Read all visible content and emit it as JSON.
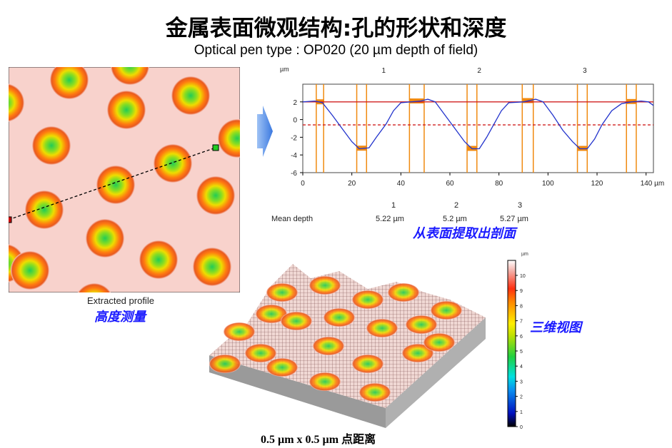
{
  "title": "金属表面微观结构:孔的形状和深度",
  "subtitle": "Optical pen type : OP020 (20 µm depth of field)",
  "left_panel": {
    "caption": "Extracted profile",
    "label": "高度测量"
  },
  "profile_label": "从表面提取出剖面",
  "view3d_label": "三维视图",
  "footer": "0.5 µm x 0.5 µm 点距离",
  "colorbar": {
    "unit": "µm",
    "ticks": [
      "0",
      "1",
      "2",
      "3",
      "4",
      "5",
      "6",
      "7",
      "8",
      "9",
      "10"
    ]
  },
  "mean_depth": {
    "label": "Mean depth",
    "headers": [
      "1",
      "2",
      "3"
    ],
    "values": [
      "5.22 µm",
      "5.2 µm",
      "5.27 µm"
    ]
  },
  "chart_data": {
    "type": "line",
    "ylabel": "µm",
    "xlabel": "µm",
    "xlim": [
      0,
      143
    ],
    "ylim": [
      -6,
      4
    ],
    "xticks": [
      "0",
      "20",
      "40",
      "60",
      "80",
      "100",
      "120",
      "140 µm"
    ],
    "yticks": [
      "2",
      "0",
      "-2",
      "-4",
      "-6"
    ],
    "top_labels": [
      "1",
      "2",
      "3"
    ],
    "reference_line": 2,
    "mean_line": -0.6,
    "markers": [
      5.5,
      8.5,
      22,
      26,
      43.5,
      49.5,
      67,
      71,
      89.5,
      94,
      112,
      116,
      132,
      136
    ],
    "x": [
      0,
      5,
      8,
      12,
      16,
      20,
      23,
      27,
      30,
      34,
      37,
      40,
      44,
      48,
      51,
      54,
      58,
      62,
      66,
      69,
      72,
      75,
      78,
      81,
      84,
      90,
      95,
      98,
      102,
      106,
      110,
      113,
      116,
      119,
      122,
      126,
      130,
      134,
      138,
      141,
      143
    ],
    "y": [
      2,
      2.1,
      1.9,
      0.5,
      -1,
      -2.5,
      -3.3,
      -3.2,
      -2,
      -0.5,
      1,
      1.9,
      2,
      2.1,
      2.3,
      2,
      0.5,
      -1,
      -2.5,
      -3.3,
      -3.3,
      -2,
      -0.5,
      1,
      1.9,
      2,
      2.3,
      2,
      0.5,
      -1.2,
      -2.5,
      -3.3,
      -3.3,
      -2.2,
      -0.6,
      1,
      1.8,
      2,
      2.1,
      2,
      1.6
    ]
  },
  "colors": {
    "accent": "#1a1aff",
    "profile": "#2233cc",
    "ref": "#d02020",
    "marker": "#f08a10"
  }
}
